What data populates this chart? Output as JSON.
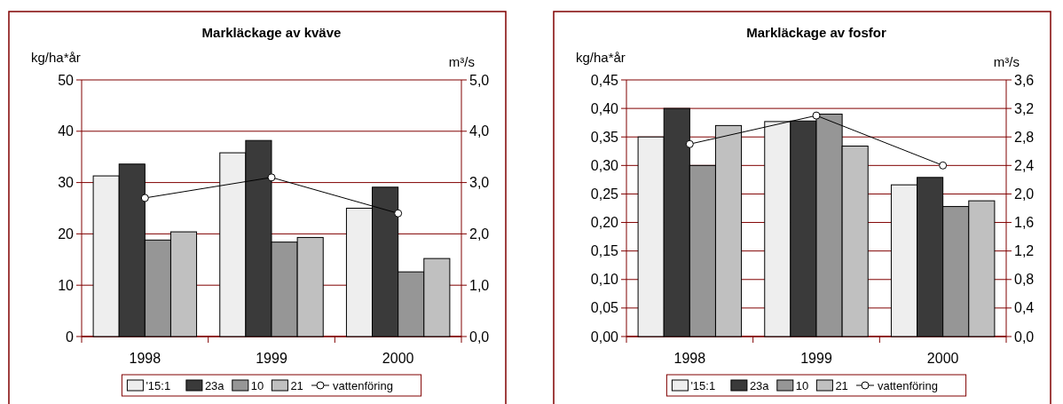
{
  "chart_data": [
    {
      "type": "bar",
      "title": "Markläckage av kväve",
      "ylabel": "kg/ha*år",
      "y2label": "m³/s",
      "categories": [
        "1998",
        "1999",
        "2000"
      ],
      "series": [
        {
          "name": "'15:1",
          "color": "#eeeeee",
          "values": [
            31.3,
            35.8,
            25.0
          ]
        },
        {
          "name": "23a",
          "color": "#3a3a3a",
          "values": [
            33.6,
            38.2,
            29.1
          ]
        },
        {
          "name": "10",
          "color": "#969696",
          "values": [
            18.8,
            18.4,
            12.6
          ]
        },
        {
          "name": "21",
          "color": "#c0c0c0",
          "values": [
            20.4,
            19.3,
            15.2
          ]
        },
        {
          "name": "vattenföring",
          "type": "line",
          "axis": "y2",
          "color": "#000000",
          "marker": "circle",
          "values": [
            2.7,
            3.1,
            2.4
          ]
        }
      ],
      "ylim": [
        0,
        50
      ],
      "yticks": [
        0,
        10,
        20,
        30,
        40,
        50
      ],
      "y2lim": [
        0,
        5
      ],
      "y2ticks": [
        {
          "value": 0,
          "label": "0,0"
        },
        {
          "value": 1,
          "label": "1,0"
        },
        {
          "value": 2,
          "label": "2,0"
        },
        {
          "value": 3,
          "label": "3,0"
        },
        {
          "value": 4,
          "label": "4,0"
        },
        {
          "value": 5,
          "label": "5,0"
        }
      ],
      "grid": "y",
      "legend": "bottom"
    },
    {
      "type": "bar",
      "title": "Markläckage av fosfor",
      "ylabel": "kg/ha*år",
      "y2label": "m³/s",
      "categories": [
        "1998",
        "1999",
        "2000"
      ],
      "series": [
        {
          "name": "'15:1",
          "color": "#eeeeee",
          "values": [
            0.35,
            0.377,
            0.266
          ]
        },
        {
          "name": "23a",
          "color": "#3a3a3a",
          "values": [
            0.4,
            0.378,
            0.279
          ]
        },
        {
          "name": "10",
          "color": "#969696",
          "values": [
            0.3,
            0.39,
            0.228
          ]
        },
        {
          "name": "21",
          "color": "#c0c0c0",
          "values": [
            0.37,
            0.334,
            0.238
          ]
        },
        {
          "name": "vattenföring",
          "type": "line",
          "axis": "y2",
          "color": "#000000",
          "marker": "circle",
          "values": [
            2.7,
            3.1,
            2.4
          ]
        }
      ],
      "ylim": [
        0,
        0.45
      ],
      "yticks": [
        {
          "value": 0,
          "label": "0,00"
        },
        {
          "value": 0.05,
          "label": "0,05"
        },
        {
          "value": 0.1,
          "label": "0,10"
        },
        {
          "value": 0.15,
          "label": "0,15"
        },
        {
          "value": 0.2,
          "label": "0,20"
        },
        {
          "value": 0.25,
          "label": "0,25"
        },
        {
          "value": 0.3,
          "label": "0,30"
        },
        {
          "value": 0.35,
          "label": "0,35"
        },
        {
          "value": 0.4,
          "label": "0,40"
        },
        {
          "value": 0.45,
          "label": "0,45"
        }
      ],
      "y2lim": [
        0,
        3.6
      ],
      "y2ticks": [
        {
          "value": 0,
          "label": "0,0"
        },
        {
          "value": 0.4,
          "label": "0,4"
        },
        {
          "value": 0.8,
          "label": "0,8"
        },
        {
          "value": 1.2,
          "label": "1,2"
        },
        {
          "value": 1.6,
          "label": "1,6"
        },
        {
          "value": 2.0,
          "label": "2,0"
        },
        {
          "value": 2.4,
          "label": "2,4"
        },
        {
          "value": 2.8,
          "label": "2,8"
        },
        {
          "value": 3.2,
          "label": "3,2"
        },
        {
          "value": 3.6,
          "label": "3,6"
        }
      ],
      "grid": "y",
      "legend": "bottom"
    }
  ]
}
